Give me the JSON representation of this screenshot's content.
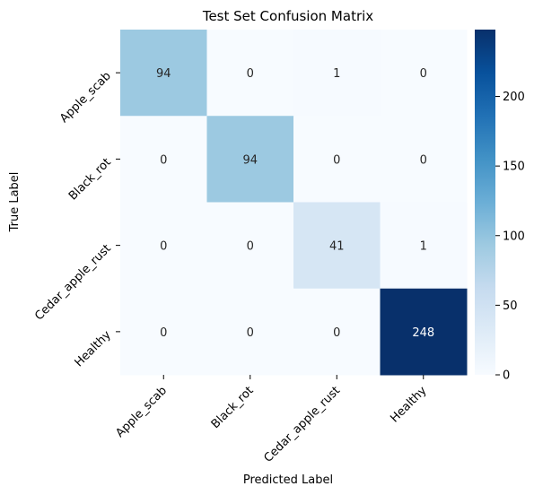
{
  "chart_data": {
    "type": "heatmap",
    "title": "Test Set Confusion Matrix",
    "xlabel": "Predicted Label",
    "ylabel": "True Label",
    "x_categories": [
      "Apple_scab",
      "Black_rot",
      "Cedar_apple_rust",
      "Healthy"
    ],
    "y_categories": [
      "Apple_scab",
      "Black_rot",
      "Cedar_apple_rust",
      "Healthy"
    ],
    "values": [
      [
        94,
        0,
        1,
        0
      ],
      [
        0,
        94,
        0,
        0
      ],
      [
        0,
        0,
        41,
        1
      ],
      [
        0,
        0,
        0,
        248
      ]
    ],
    "colormap": "Blues",
    "color_range": [
      0,
      248
    ],
    "colorbar_ticks": [
      0,
      50,
      100,
      150,
      200
    ],
    "grid": false
  }
}
